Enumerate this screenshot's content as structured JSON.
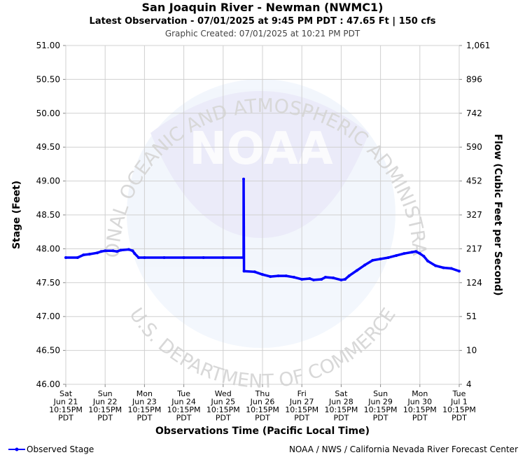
{
  "chart_data": {
    "type": "line",
    "title": "San Joaquin River - Newman (NWMC1)",
    "subtitle": "Latest Observation - 07/01/2025 at 9:45 PM PDT : 47.65 Ft | 150 cfs",
    "created": "Graphic Created: 07/01/2025 at 10:21 PM PDT",
    "ylabel": "Stage (Feet)",
    "y2label": "Flow (Cubic Feet per Second)",
    "xlabel": "Observations Time (Pacific Local Time)",
    "credit": "NOAA / NWS / California Nevada River Forecast Center",
    "watermark": {
      "logo": "NOAA",
      "ring_top": "NATIONAL OCEANIC AND ATMOSPHERIC ADMINISTRATION",
      "ring_bottom": "U.S. DEPARTMENT OF COMMERCE"
    },
    "grid": true,
    "legend": "bottom-left",
    "xlim": [
      0,
      10
    ],
    "xticks": [
      {
        "value": 0,
        "label": [
          "Sat",
          "Jun 21",
          "10:15PM",
          "PDT"
        ]
      },
      {
        "value": 1,
        "label": [
          "Sun",
          "Jun 22",
          "10:15PM",
          "PDT"
        ]
      },
      {
        "value": 2,
        "label": [
          "Mon",
          "Jun 23",
          "10:15PM",
          "PDT"
        ]
      },
      {
        "value": 3,
        "label": [
          "Tue",
          "Jun 24",
          "10:15PM",
          "PDT"
        ]
      },
      {
        "value": 4,
        "label": [
          "Wed",
          "Jun 25",
          "10:15PM",
          "PDT"
        ]
      },
      {
        "value": 5,
        "label": [
          "Thu",
          "Jun 26",
          "10:15PM",
          "PDT"
        ]
      },
      {
        "value": 6,
        "label": [
          "Fri",
          "Jun 27",
          "10:15PM",
          "PDT"
        ]
      },
      {
        "value": 7,
        "label": [
          "Sat",
          "Jun 28",
          "10:15PM",
          "PDT"
        ]
      },
      {
        "value": 8,
        "label": [
          "Sun",
          "Jun 29",
          "10:15PM",
          "PDT"
        ]
      },
      {
        "value": 9,
        "label": [
          "Mon",
          "Jun 30",
          "10:15PM",
          "PDT"
        ]
      },
      {
        "value": 10,
        "label": [
          "Tue",
          "Jul 1",
          "10:15PM",
          "PDT"
        ]
      }
    ],
    "ylim": [
      46,
      51
    ],
    "yticks": [
      {
        "value": 46,
        "label": "46.00"
      },
      {
        "value": 46.5,
        "label": "46.50"
      },
      {
        "value": 47,
        "label": "47.00"
      },
      {
        "value": 47.5,
        "label": "47.50"
      },
      {
        "value": 48,
        "label": "48.00"
      },
      {
        "value": 48.5,
        "label": "48.50"
      },
      {
        "value": 49,
        "label": "49.00"
      },
      {
        "value": 49.5,
        "label": "49.50"
      },
      {
        "value": 50,
        "label": "50.00"
      },
      {
        "value": 50.5,
        "label": "50.50"
      },
      {
        "value": 51,
        "label": "51.00"
      }
    ],
    "y2ticks": [
      4,
      10,
      51,
      124,
      217,
      327,
      452,
      590,
      742,
      896,
      {
        "value": 1061,
        "label": "1,061"
      }
    ],
    "series": [
      {
        "name": "Observed Stage",
        "color": "#0000ff",
        "x": [
          0,
          0.3,
          0.45,
          0.6,
          0.8,
          0.9,
          1.0,
          1.2,
          1.3,
          1.4,
          1.6,
          1.7,
          1.75,
          1.85,
          2.0,
          2.5,
          3.0,
          3.5,
          4.0,
          4.52,
          4.52,
          4.53,
          4.8,
          5.0,
          5.2,
          5.4,
          5.6,
          5.8,
          6.0,
          6.2,
          6.3,
          6.5,
          6.6,
          6.8,
          7.0,
          7.1,
          7.2,
          7.4,
          7.6,
          7.8,
          8.0,
          8.2,
          8.4,
          8.6,
          8.8,
          8.9,
          9.0,
          9.1,
          9.2,
          9.4,
          9.6,
          9.8,
          10.0
        ],
        "values": [
          47.87,
          47.87,
          47.91,
          47.92,
          47.94,
          47.96,
          47.97,
          47.97,
          47.96,
          47.98,
          47.99,
          47.97,
          47.93,
          47.87,
          47.87,
          47.87,
          47.87,
          47.87,
          47.87,
          47.87,
          49.03,
          47.67,
          47.66,
          47.62,
          47.59,
          47.6,
          47.6,
          47.58,
          47.55,
          47.56,
          47.54,
          47.55,
          47.58,
          47.57,
          47.54,
          47.55,
          47.6,
          47.68,
          47.76,
          47.83,
          47.85,
          47.87,
          47.9,
          47.93,
          47.95,
          47.96,
          47.93,
          47.89,
          47.82,
          47.75,
          47.72,
          47.71,
          47.67
        ]
      }
    ]
  }
}
